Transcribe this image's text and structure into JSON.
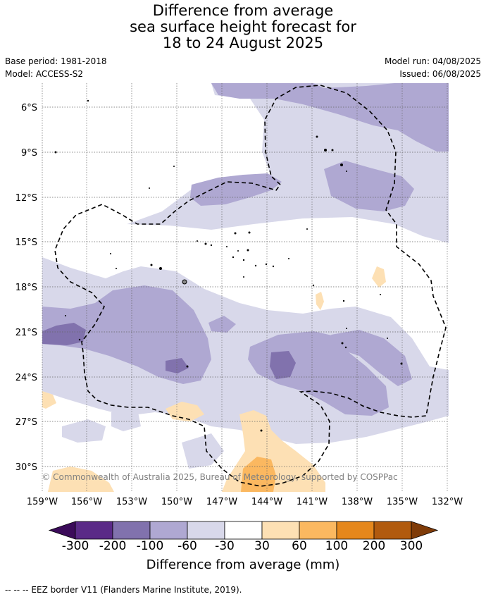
{
  "title": {
    "line1": "Difference from average",
    "line2": "sea surface height forecast for",
    "line3": "18 to 24 August 2025"
  },
  "meta": {
    "base_period": "Base period: 1981-2018",
    "model": "Model: ACCESS-S2",
    "model_run": "Model run: 04/08/2025",
    "issued": "Issued: 06/08/2025"
  },
  "map": {
    "lat_labels": [
      "6°S",
      "9°S",
      "12°S",
      "15°S",
      "18°S",
      "21°S",
      "24°S",
      "27°S",
      "30°S"
    ],
    "lon_labels": [
      "159°W",
      "156°W",
      "153°W",
      "150°W",
      "147°W",
      "144°W",
      "141°W",
      "138°W",
      "135°W",
      "132°W"
    ],
    "copyright": "© Commonwealth of Australia 2025, Bureau of Meteorology, supported by COSPPac",
    "grid": true
  },
  "colorbar": {
    "title": "Difference from average (mm)",
    "labels": [
      "-300",
      "-200",
      "-100",
      "-60",
      "-30",
      "30",
      "60",
      "100",
      "200",
      "300"
    ],
    "colors": [
      "#3b0b5a",
      "#5a2a87",
      "#8172ad",
      "#afa8d2",
      "#d8d8ea",
      "#ffffff",
      "#fde0b4",
      "#fbb860",
      "#e5871c",
      "#b15a0e",
      "#7f3b08"
    ]
  },
  "footer": "--  --  -- EEZ border V11 (Flanders Marine Institute, 2019)."
}
